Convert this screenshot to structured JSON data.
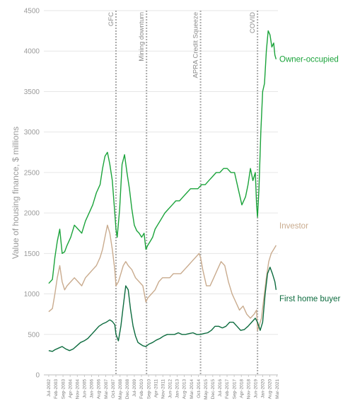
{
  "chart_data": {
    "type": "line",
    "ylabel": "Value of housing finance, $ millions",
    "ylim": [
      0,
      4500
    ],
    "yticks": [
      0,
      500,
      1000,
      1500,
      2000,
      2500,
      3000,
      3500,
      4000,
      4500
    ],
    "grid": "horizontal",
    "x_tick_labels": [
      "Jul-2002",
      "Feb-2003",
      "Sep-2003",
      "Apr-2004",
      "Nov-2004",
      "Jun-2005",
      "Jan-2006",
      "Aug-2006",
      "Mar-2007",
      "Oct-2007",
      "May-2008",
      "Dec-2008",
      "Jul-2009",
      "Feb-2010",
      "Sep-2010",
      "Apr-2011",
      "Nov-2011",
      "Jun-2012",
      "Jan-2013",
      "Aug-2013",
      "Mar-2014",
      "Oct-2014",
      "May-2015",
      "Dec-2015",
      "Jul-2016",
      "Feb-2017",
      "Sep-2017",
      "Apr-2018",
      "Nov-2018",
      "Jun-2019",
      "Jan-2020",
      "Aug-2020",
      "Mar-2021"
    ],
    "events": [
      {
        "label": "GFC",
        "x": 2008.0
      },
      {
        "label": "Mining downturn",
        "x": 2010.5
      },
      {
        "label": "APRA Credit Squeeze",
        "x": 2014.92
      },
      {
        "label": "COVID",
        "x": 2019.58
      }
    ],
    "series": [
      {
        "name": "Owner-occupied",
        "color": "#1aa33a",
        "x": [
          2002.5,
          2002.8,
          2003.0,
          2003.2,
          2003.4,
          2003.6,
          2003.8,
          2004.0,
          2004.3,
          2004.6,
          2004.9,
          2005.2,
          2005.5,
          2005.8,
          2006.1,
          2006.4,
          2006.7,
          2006.9,
          2007.1,
          2007.3,
          2007.5,
          2007.7,
          2007.9,
          2008.0,
          2008.1,
          2008.3,
          2008.5,
          2008.7,
          2008.9,
          2009.1,
          2009.3,
          2009.5,
          2009.7,
          2009.9,
          2010.1,
          2010.3,
          2010.45,
          2010.6,
          2010.8,
          2011.0,
          2011.2,
          2011.4,
          2011.6,
          2011.8,
          2012.0,
          2012.3,
          2012.6,
          2012.9,
          2013.2,
          2013.5,
          2013.8,
          2014.1,
          2014.4,
          2014.7,
          2015.0,
          2015.3,
          2015.6,
          2015.9,
          2016.2,
          2016.5,
          2016.8,
          2017.1,
          2017.4,
          2017.7,
          2018.0,
          2018.3,
          2018.6,
          2018.8,
          2019.0,
          2019.2,
          2019.4,
          2019.5,
          2019.58,
          2019.7,
          2019.85,
          2020.0,
          2020.15,
          2020.3,
          2020.45,
          2020.6,
          2020.75,
          2020.9,
          2021.0,
          2021.1
        ],
        "values": [
          1130,
          1180,
          1450,
          1650,
          1800,
          1500,
          1520,
          1600,
          1700,
          1850,
          1800,
          1750,
          1900,
          2000,
          2100,
          2250,
          2350,
          2550,
          2700,
          2750,
          2600,
          2400,
          2000,
          1800,
          1700,
          2050,
          2600,
          2720,
          2500,
          2300,
          2050,
          1850,
          1780,
          1750,
          1700,
          1750,
          1550,
          1600,
          1650,
          1700,
          1800,
          1850,
          1900,
          1950,
          2000,
          2050,
          2100,
          2150,
          2150,
          2200,
          2250,
          2300,
          2300,
          2300,
          2350,
          2350,
          2400,
          2450,
          2500,
          2500,
          2550,
          2550,
          2500,
          2500,
          2300,
          2100,
          2200,
          2350,
          2550,
          2400,
          2500,
          2100,
          1950,
          2300,
          3000,
          3500,
          3600,
          4000,
          4250,
          4200,
          4050,
          4100,
          3950,
          3900
        ]
      },
      {
        "name": "Investor",
        "color": "#c9ab8e",
        "x": [
          2002.5,
          2002.8,
          2003.0,
          2003.2,
          2003.4,
          2003.6,
          2003.8,
          2004.0,
          2004.3,
          2004.6,
          2004.9,
          2005.2,
          2005.5,
          2005.8,
          2006.1,
          2006.4,
          2006.7,
          2006.9,
          2007.1,
          2007.3,
          2007.5,
          2007.7,
          2007.9,
          2008.0,
          2008.2,
          2008.4,
          2008.6,
          2008.8,
          2009.0,
          2009.3,
          2009.6,
          2009.9,
          2010.2,
          2010.45,
          2010.6,
          2010.9,
          2011.2,
          2011.5,
          2011.8,
          2012.1,
          2012.4,
          2012.7,
          2013.0,
          2013.3,
          2013.6,
          2013.9,
          2014.2,
          2014.5,
          2014.8,
          2014.92,
          2015.1,
          2015.4,
          2015.7,
          2016.0,
          2016.3,
          2016.6,
          2016.9,
          2017.2,
          2017.5,
          2017.8,
          2018.1,
          2018.4,
          2018.7,
          2019.0,
          2019.3,
          2019.5,
          2019.58,
          2019.7,
          2019.9,
          2020.1,
          2020.3,
          2020.5,
          2020.7,
          2020.9,
          2021.1
        ],
        "values": [
          780,
          820,
          1000,
          1200,
          1350,
          1150,
          1050,
          1100,
          1150,
          1200,
          1150,
          1100,
          1200,
          1250,
          1300,
          1350,
          1450,
          1550,
          1700,
          1850,
          1750,
          1550,
          1300,
          1100,
          1150,
          1250,
          1350,
          1400,
          1350,
          1300,
          1200,
          1150,
          1100,
          900,
          950,
          1000,
          1050,
          1150,
          1200,
          1200,
          1200,
          1250,
          1250,
          1250,
          1300,
          1350,
          1400,
          1450,
          1500,
          1450,
          1300,
          1100,
          1100,
          1200,
          1300,
          1400,
          1350,
          1150,
          1000,
          900,
          800,
          850,
          750,
          700,
          750,
          800,
          550,
          600,
          700,
          950,
          1200,
          1400,
          1500,
          1550,
          1600
        ]
      },
      {
        "name": "First home buyer",
        "color": "#0c6b3e",
        "x": [
          2002.5,
          2002.8,
          2003.0,
          2003.3,
          2003.6,
          2003.9,
          2004.2,
          2004.5,
          2004.8,
          2005.1,
          2005.4,
          2005.7,
          2006.0,
          2006.3,
          2006.6,
          2006.9,
          2007.2,
          2007.5,
          2007.7,
          2007.9,
          2008.0,
          2008.2,
          2008.4,
          2008.6,
          2008.8,
          2009.0,
          2009.2,
          2009.4,
          2009.6,
          2009.8,
          2010.0,
          2010.2,
          2010.45,
          2010.7,
          2011.0,
          2011.3,
          2011.6,
          2011.9,
          2012.2,
          2012.5,
          2012.8,
          2013.1,
          2013.4,
          2013.7,
          2014.0,
          2014.3,
          2014.6,
          2014.92,
          2015.2,
          2015.5,
          2015.8,
          2016.1,
          2016.4,
          2016.7,
          2017.0,
          2017.3,
          2017.6,
          2017.9,
          2018.2,
          2018.5,
          2018.8,
          2019.1,
          2019.4,
          2019.58,
          2019.8,
          2020.0,
          2020.2,
          2020.4,
          2020.6,
          2020.8,
          2021.0,
          2021.1
        ],
        "values": [
          300,
          290,
          310,
          330,
          350,
          320,
          300,
          320,
          360,
          400,
          420,
          450,
          500,
          550,
          600,
          630,
          650,
          680,
          660,
          620,
          500,
          420,
          600,
          850,
          1100,
          1050,
          800,
          600,
          480,
          400,
          380,
          360,
          350,
          380,
          400,
          430,
          450,
          480,
          500,
          500,
          500,
          520,
          500,
          500,
          510,
          520,
          500,
          500,
          510,
          520,
          550,
          600,
          600,
          580,
          600,
          650,
          650,
          600,
          550,
          560,
          600,
          650,
          700,
          650,
          550,
          650,
          1000,
          1250,
          1330,
          1250,
          1150,
          1050
        ]
      }
    ]
  }
}
